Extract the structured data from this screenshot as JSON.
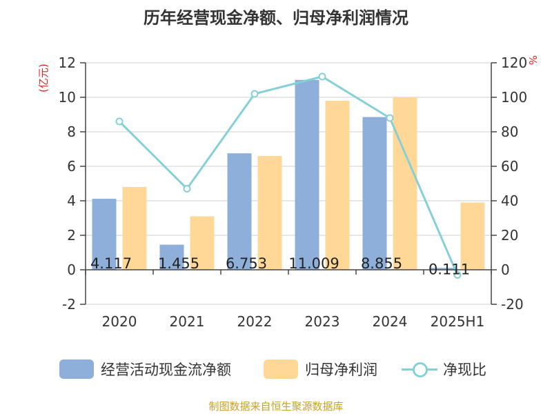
{
  "title": "历年经营现金净额、归母净利润情况",
  "source": "制图数据来自恒生聚源数据库",
  "chart_data": {
    "type": "bar",
    "categories": [
      "2020",
      "2021",
      "2022",
      "2023",
      "2024",
      "2025H1"
    ],
    "series": [
      {
        "name": "经营活动现金流净额",
        "type": "bar",
        "axis": "left",
        "color": "#8eafd9",
        "values": [
          4.117,
          1.455,
          6.753,
          11.009,
          8.855,
          0.111
        ],
        "labels": [
          "4.117",
          "1.455",
          "6.753",
          "11.009",
          "8.855",
          "0.111"
        ]
      },
      {
        "name": "归母净利润",
        "type": "bar",
        "axis": "left",
        "color": "#ffd898",
        "values": [
          4.8,
          3.1,
          6.6,
          9.8,
          10.0,
          3.9
        ]
      },
      {
        "name": "净现比",
        "type": "line",
        "axis": "right",
        "color": "#85d0d6",
        "values": [
          86,
          47,
          102,
          112,
          88,
          -3
        ]
      }
    ],
    "y_left": {
      "unit": "(亿元)",
      "min": -2,
      "max": 12,
      "ticks": [
        "-2",
        "0",
        "2",
        "4",
        "6",
        "8",
        "10",
        "12"
      ]
    },
    "y_right": {
      "unit": "%",
      "min": -20,
      "max": 120,
      "ticks": [
        "-20",
        "0",
        "20",
        "40",
        "60",
        "80",
        "100",
        "120"
      ]
    },
    "grid": true,
    "legend": "bottom"
  }
}
